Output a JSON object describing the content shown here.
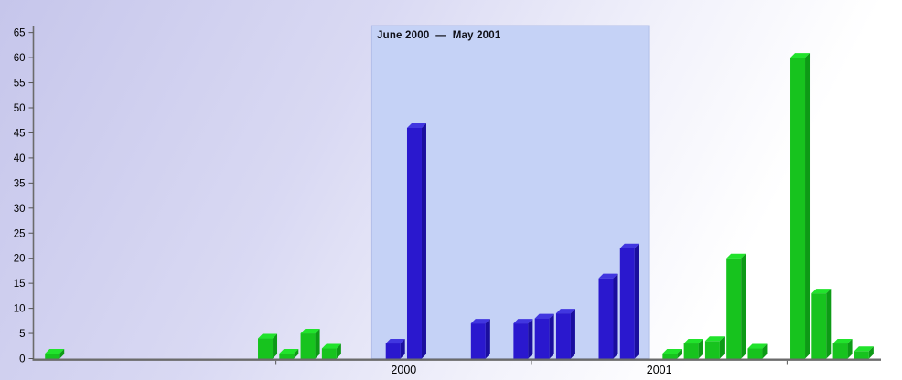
{
  "chart_data": {
    "type": "bar",
    "title": "",
    "xlabel": "",
    "ylabel": "",
    "ylim": [
      0,
      65
    ],
    "grid": false,
    "legend": false,
    "y_ticks": [
      0,
      5,
      10,
      15,
      20,
      25,
      30,
      35,
      40,
      45,
      50,
      55,
      60,
      65
    ],
    "x_axis": {
      "unit": "month",
      "range_start": "1999-01",
      "range_end": "2002-05",
      "year_boundary_ticks": [
        2000,
        2001,
        2002
      ],
      "year_labels": [
        2000,
        2001
      ]
    },
    "highlight_region": {
      "label": "June 2000  —  May 2001",
      "from": "2000-06",
      "to": "2001-05"
    },
    "bars": [
      {
        "month": "1999-02",
        "value": 1,
        "series": "out-of-range"
      },
      {
        "month": "1999-12",
        "value": 4,
        "series": "out-of-range"
      },
      {
        "month": "2000-01",
        "value": 1,
        "series": "out-of-range"
      },
      {
        "month": "2000-02",
        "value": 5,
        "series": "out-of-range"
      },
      {
        "month": "2000-03",
        "value": 2,
        "series": "out-of-range"
      },
      {
        "month": "2000-06",
        "value": 3,
        "series": "in-range"
      },
      {
        "month": "2000-07",
        "value": 46,
        "series": "in-range"
      },
      {
        "month": "2000-10",
        "value": 7,
        "series": "in-range"
      },
      {
        "month": "2000-12",
        "value": 7,
        "series": "in-range"
      },
      {
        "month": "2001-01",
        "value": 8,
        "series": "in-range"
      },
      {
        "month": "2001-02",
        "value": 9,
        "series": "in-range"
      },
      {
        "month": "2001-04",
        "value": 16,
        "series": "in-range"
      },
      {
        "month": "2001-05",
        "value": 22,
        "series": "in-range"
      },
      {
        "month": "2001-07",
        "value": 1,
        "series": "out-of-range"
      },
      {
        "month": "2001-08",
        "value": 3,
        "series": "out-of-range"
      },
      {
        "month": "2001-09",
        "value": 3.5,
        "series": "out-of-range"
      },
      {
        "month": "2001-10",
        "value": 20,
        "series": "out-of-range"
      },
      {
        "month": "2001-11",
        "value": 2,
        "series": "out-of-range"
      },
      {
        "month": "2002-01",
        "value": 60,
        "series": "out-of-range"
      },
      {
        "month": "2002-02",
        "value": 13,
        "series": "out-of-range"
      },
      {
        "month": "2002-03",
        "value": 3,
        "series": "out-of-range"
      },
      {
        "month": "2002-04",
        "value": 1.5,
        "series": "out-of-range"
      }
    ]
  },
  "colors": {
    "band_fill": "#c5d2f6",
    "band_border": "#b2bfe9",
    "axis_line": "#6b6b6b",
    "tick_line": "#555555",
    "tick_text": "#000000",
    "series": {
      "out-of-range": {
        "front": "#17c31e",
        "top": "#21e32c",
        "side": "#0d9a16"
      },
      "in-range": {
        "front": "#2a18ce",
        "top": "#4136e0",
        "side": "#1a0e9e"
      }
    },
    "background_top": "#c6c6eb",
    "background_bottom": "#ffffff"
  }
}
